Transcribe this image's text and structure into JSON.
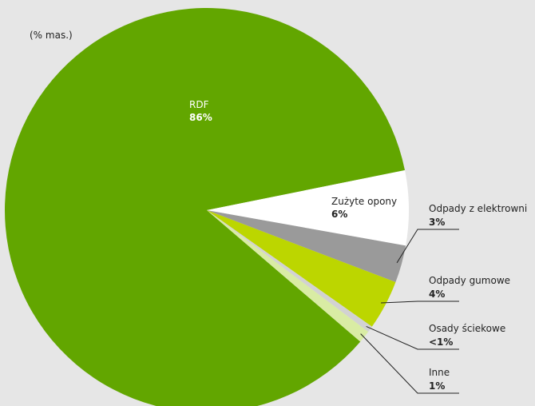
{
  "chart_data": {
    "type": "pie",
    "unit": "(% mas.)",
    "categories": [
      "RDF",
      "Zużyte opony",
      "Odpady z elektrowni",
      "Odpady gumowe",
      "Osady ściekowe",
      "Inne"
    ],
    "values": [
      86,
      6,
      3,
      4,
      0.5,
      1
    ],
    "value_labels": [
      "86%",
      "6%",
      "3%",
      "4%",
      "<1%",
      "1%"
    ],
    "colors": [
      "#62a600",
      "#ffffff",
      "#9a9a9a",
      "#bcd600",
      "#d2d2d2",
      "#d9eca4"
    ]
  }
}
